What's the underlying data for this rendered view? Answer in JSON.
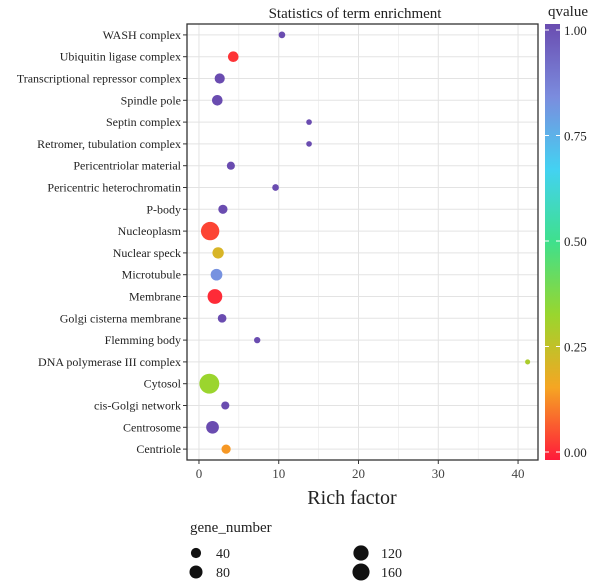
{
  "chart_data": {
    "type": "scatter",
    "title": "Statistics of term enrichment",
    "xlabel": "Rich factor",
    "ylabel": "",
    "xlim": [
      -1.5,
      42.5
    ],
    "xticks": [
      0,
      10,
      20,
      30,
      40
    ],
    "grid": true,
    "categories": [
      "Centriole",
      "Centrosome",
      "cis-Golgi network",
      "Cytosol",
      "DNA polymerase III complex",
      "Flemming body",
      "Golgi cisterna membrane",
      "Membrane",
      "Microtubule",
      "Nuclear speck",
      "Nucleoplasm",
      "P-body",
      "Pericentric heterochromatin",
      "Pericentriolar material",
      "Retromer, tubulation complex",
      "Septin complex",
      "Spindle pole",
      "Transcriptional repressor complex",
      "Ubiquitin ligase complex",
      "WASH complex"
    ],
    "points": [
      {
        "term": "Centriole",
        "rich_factor": 3.4,
        "qvalue": 0.15,
        "gene_number": 30
      },
      {
        "term": "Centrosome",
        "rich_factor": 1.7,
        "qvalue": 1.0,
        "gene_number": 75
      },
      {
        "term": "cis-Golgi network",
        "rich_factor": 3.3,
        "qvalue": 1.0,
        "gene_number": 20
      },
      {
        "term": "Cytosol",
        "rich_factor": 1.3,
        "qvalue": 0.33,
        "gene_number": 230
      },
      {
        "term": "DNA polymerase III complex",
        "rich_factor": 41.2,
        "qvalue": 0.3,
        "gene_number": 3
      },
      {
        "term": "Flemming body",
        "rich_factor": 7.3,
        "qvalue": 1.0,
        "gene_number": 8
      },
      {
        "term": "Golgi cisterna membrane",
        "rich_factor": 2.9,
        "qvalue": 1.0,
        "gene_number": 25
      },
      {
        "term": "Membrane",
        "rich_factor": 2.0,
        "qvalue": 0.02,
        "gene_number": 110
      },
      {
        "term": "Microtubule",
        "rich_factor": 2.2,
        "qvalue": 0.82,
        "gene_number": 60
      },
      {
        "term": "Nuclear speck",
        "rich_factor": 2.4,
        "qvalue": 0.22,
        "gene_number": 55
      },
      {
        "term": "Nucleoplasm",
        "rich_factor": 1.4,
        "qvalue": 0.05,
        "gene_number": 190
      },
      {
        "term": "P-body",
        "rich_factor": 3.0,
        "qvalue": 1.0,
        "gene_number": 30
      },
      {
        "term": "Pericentric heterochromatin",
        "rich_factor": 9.6,
        "qvalue": 1.0,
        "gene_number": 10
      },
      {
        "term": "Pericentriolar material",
        "rich_factor": 4.0,
        "qvalue": 1.0,
        "gene_number": 20
      },
      {
        "term": "Retromer, tubulation complex",
        "rich_factor": 13.8,
        "qvalue": 1.0,
        "gene_number": 5
      },
      {
        "term": "Septin complex",
        "rich_factor": 13.8,
        "qvalue": 1.0,
        "gene_number": 5
      },
      {
        "term": "Spindle pole",
        "rich_factor": 2.3,
        "qvalue": 1.0,
        "gene_number": 45
      },
      {
        "term": "Transcriptional repressor complex",
        "rich_factor": 2.6,
        "qvalue": 1.0,
        "gene_number": 40
      },
      {
        "term": "Ubiquitin ligase complex",
        "rich_factor": 4.3,
        "qvalue": 0.03,
        "gene_number": 45
      },
      {
        "term": "WASH complex",
        "rich_factor": 10.4,
        "qvalue": 1.0,
        "gene_number": 10
      }
    ],
    "color_legend": {
      "title": "qvalue",
      "range": [
        0,
        1
      ],
      "ticks": [
        "0.00",
        "0.25",
        "0.50",
        "0.75",
        "1.00"
      ],
      "tick_values": [
        0,
        0.25,
        0.5,
        0.75,
        1.0
      ],
      "colors": [
        "#ff1a3a",
        "#f5a623",
        "#99d62e",
        "#3fe08c",
        "#43d2f2",
        "#7b8cde",
        "#6a4cb0"
      ],
      "placement": "right"
    },
    "size_legend": {
      "title": "gene_number",
      "entries": [
        {
          "label": "40",
          "value": 40
        },
        {
          "label": "80",
          "value": 80
        },
        {
          "label": "120",
          "value": 120
        },
        {
          "label": "160",
          "value": 160
        }
      ],
      "placement": "bottom"
    },
    "colors": {
      "panel_bg": "#ffffff",
      "grid": "#e3e3e3",
      "axis": "#333333"
    }
  }
}
